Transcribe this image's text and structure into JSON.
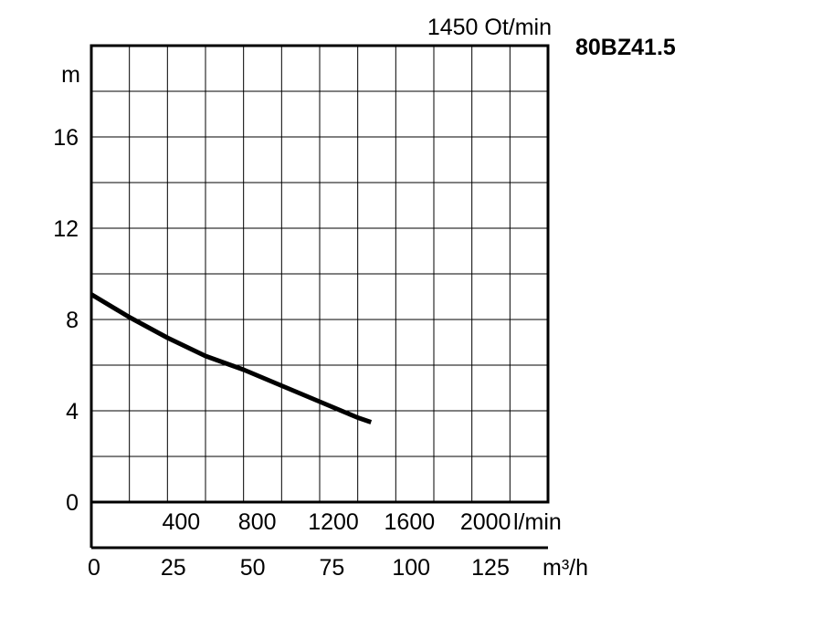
{
  "chart_data": {
    "type": "line",
    "title": "80BZ41.5",
    "speed_label": "1450 Ot/min",
    "ylabel": "m",
    "ylim": [
      0,
      20
    ],
    "yticks": [
      0,
      4,
      8,
      12,
      16
    ],
    "x_lpm": {
      "unit": "l/min",
      "lim": [
        0,
        2400
      ],
      "ticks": [
        400,
        800,
        1200,
        1600,
        2000
      ]
    },
    "x_m3h": {
      "unit": "m³/h",
      "lim": [
        0,
        144
      ],
      "ticks": [
        0,
        25,
        50,
        75,
        100,
        125
      ]
    },
    "grid": true,
    "series": [
      {
        "x": [
          0,
          200,
          400,
          600,
          800,
          1000,
          1200,
          1400,
          1470
        ],
        "y": [
          9.1,
          8.1,
          7.2,
          6.4,
          5.8,
          5.1,
          4.4,
          3.7,
          3.5
        ]
      }
    ]
  }
}
